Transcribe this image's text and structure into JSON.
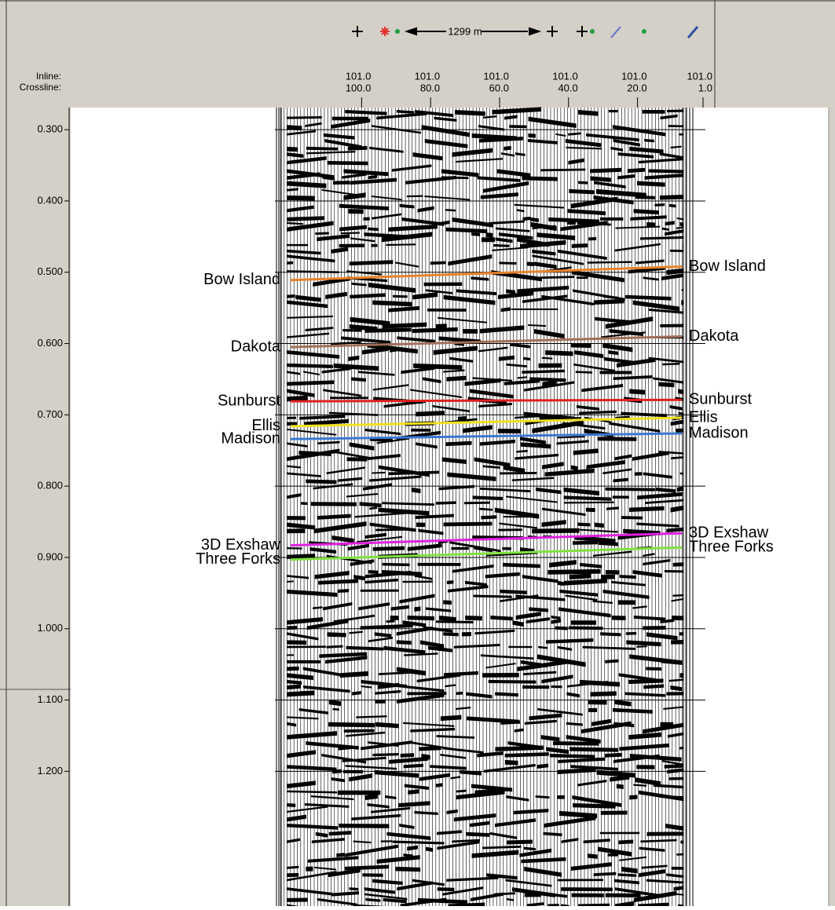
{
  "toolbar": {
    "scale_label": "1299 m"
  },
  "header": {
    "inline_label": "Inline:",
    "crossline_label": "Crossline:"
  },
  "section": {
    "inline_labels": [
      "101.0",
      "101.0",
      "101.0",
      "101.0",
      "101.0",
      "101.0"
    ],
    "crossline_lim": [
      124,
      1
    ],
    "crossline_ticks": [
      {
        "value": 100,
        "label": "100.0"
      },
      {
        "value": 80,
        "label": "80.0"
      },
      {
        "value": 60,
        "label": "60.0"
      },
      {
        "value": 40,
        "label": "40.0"
      },
      {
        "value": 20,
        "label": "20.0"
      },
      {
        "value": 1,
        "label": "1.0"
      }
    ],
    "time_lim": [
      0.269,
      1.389
    ],
    "time_ticks": [
      {
        "value": 0.3,
        "label": "0.300"
      },
      {
        "value": 0.4,
        "label": "0.400"
      },
      {
        "value": 0.5,
        "label": "0.500"
      },
      {
        "value": 0.6,
        "label": "0.600"
      },
      {
        "value": 0.7,
        "label": "0.700"
      },
      {
        "value": 0.8,
        "label": "0.800"
      },
      {
        "value": 0.9,
        "label": "0.900"
      },
      {
        "value": 1.0,
        "label": "1.000"
      },
      {
        "value": 1.1,
        "label": "1.100"
      },
      {
        "value": 1.2,
        "label": "1.200"
      }
    ],
    "horizons": [
      {
        "name": "Bow Island",
        "color": "#e8822a",
        "left_time": 0.511,
        "right_time": 0.492
      },
      {
        "name": "Dakota",
        "color": "#a0705a",
        "left_time": 0.605,
        "right_time": 0.59
      },
      {
        "name": "Sunburst",
        "color": "#e02020",
        "left_time": 0.681,
        "right_time": 0.679
      },
      {
        "name": "Ellis",
        "color": "#f0e020",
        "left_time": 0.716,
        "right_time": 0.704
      },
      {
        "name": "Madison",
        "color": "#3a78d0",
        "left_time": 0.734,
        "right_time": 0.726
      },
      {
        "name": "3D Exshaw",
        "color": "#e020e0",
        "left_time": 0.883,
        "right_time": 0.866
      },
      {
        "name": "Three Forks",
        "color": "#80e040",
        "left_time": 0.903,
        "right_time": 0.886
      }
    ]
  }
}
